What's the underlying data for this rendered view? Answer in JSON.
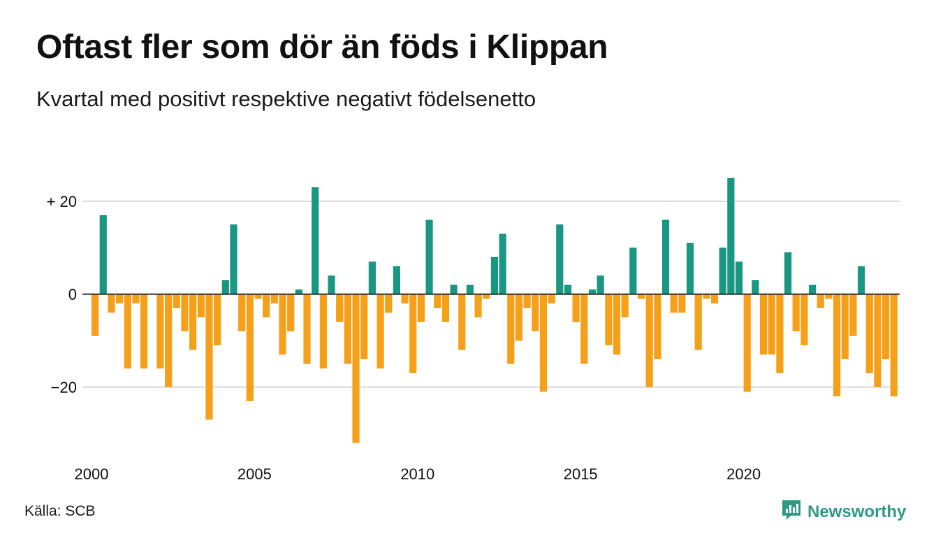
{
  "title": "Oftast fler som dör än föds i Klippan",
  "subtitle": "Kvartal med positivt respektive negativt födelsenetto",
  "source": "Källa: SCB",
  "brand": {
    "name": "Newsworthy",
    "icon": "newsworthy-logo-icon",
    "color": "#2f9a83"
  },
  "chart_data": {
    "type": "bar",
    "x_start": "2000 Q1",
    "x_tick_labels": [
      "2000",
      "2005",
      "2010",
      "2015",
      "2020"
    ],
    "y_ticks": [
      {
        "value": 20,
        "label": "+ 20"
      },
      {
        "value": 0,
        "label": "0"
      },
      {
        "value": -20,
        "label": "−20"
      }
    ],
    "ylim": [
      -33,
      27
    ],
    "grid": true,
    "colors": {
      "positive": "#1a9782",
      "negative": "#f6a01a"
    },
    "values": [
      -9,
      17,
      -4,
      -2,
      -16,
      -2,
      -16,
      0,
      -16,
      -20,
      -3,
      -8,
      -12,
      -5,
      -27,
      -11,
      3,
      15,
      -8,
      -23,
      -1,
      -5,
      -2,
      -13,
      -8,
      1,
      -15,
      23,
      -16,
      4,
      -6,
      -15,
      -32,
      -14,
      7,
      -16,
      -4,
      6,
      -2,
      -17,
      -6,
      16,
      -3,
      -6,
      2,
      -12,
      2,
      -5,
      -1,
      8,
      13,
      -15,
      -10,
      -3,
      -8,
      -21,
      -2,
      15,
      2,
      -6,
      -15,
      1,
      4,
      -11,
      -13,
      -5,
      10,
      -1,
      -20,
      -14,
      16,
      -4,
      -4,
      11,
      -12,
      -1,
      -2,
      10,
      25,
      7,
      -21,
      3,
      -13,
      -13,
      -17,
      9,
      -8,
      -11,
      2,
      -3,
      -1,
      -22,
      -14,
      -9,
      6,
      -17,
      -20,
      -14,
      -22
    ]
  }
}
